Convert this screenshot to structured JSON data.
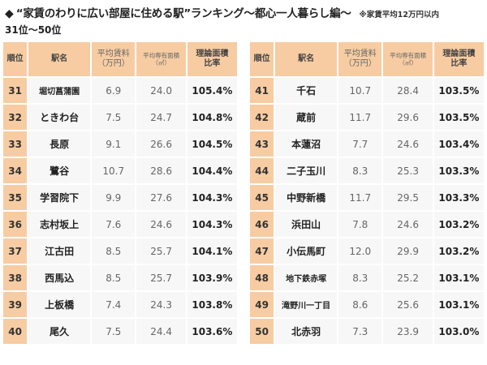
{
  "header": {
    "diamond": "◆",
    "title": "“家賃のわりに広い部屋に住める駅”ランキング〜都心一人暮らし編〜",
    "note": "※家賃平均12万円以内",
    "subtitle": "31位〜50位"
  },
  "columns": {
    "rank": "順位",
    "name": "駅名",
    "rent": "平均賃料（万円）",
    "rent_line1": "平均賃料",
    "rent_line2": "（万円）",
    "area_line1": "平均専有面積",
    "area_line2": "（㎡）",
    "ratio_line1": "理論面積",
    "ratio_line2": "比率"
  },
  "left_rows": [
    {
      "rank": "31",
      "name": "堀切菖蒲園",
      "rent": "6.9",
      "area": "24.0",
      "ratio": "105.4%"
    },
    {
      "rank": "32",
      "name": "ときわ台",
      "rent": "7.5",
      "area": "24.7",
      "ratio": "104.8%"
    },
    {
      "rank": "33",
      "name": "長原",
      "rent": "9.1",
      "area": "26.6",
      "ratio": "104.5%"
    },
    {
      "rank": "34",
      "name": "鷺谷",
      "rent": "10.7",
      "area": "28.6",
      "ratio": "104.4%"
    },
    {
      "rank": "35",
      "name": "学習院下",
      "rent": "9.9",
      "area": "27.6",
      "ratio": "104.3%"
    },
    {
      "rank": "36",
      "name": "志村坂上",
      "rent": "7.6",
      "area": "24.6",
      "ratio": "104.3%"
    },
    {
      "rank": "37",
      "name": "江古田",
      "rent": "8.5",
      "area": "25.7",
      "ratio": "104.1%"
    },
    {
      "rank": "38",
      "name": "西馬込",
      "rent": "8.5",
      "area": "25.7",
      "ratio": "103.9%"
    },
    {
      "rank": "39",
      "name": "上板橋",
      "rent": "7.4",
      "area": "24.3",
      "ratio": "103.8%"
    },
    {
      "rank": "40",
      "name": "尾久",
      "rent": "7.5",
      "area": "24.4",
      "ratio": "103.6%"
    }
  ],
  "right_rows": [
    {
      "rank": "41",
      "name": "千石",
      "rent": "10.7",
      "area": "28.4",
      "ratio": "103.5%"
    },
    {
      "rank": "42",
      "name": "蔵前",
      "rent": "11.7",
      "area": "29.6",
      "ratio": "103.5%"
    },
    {
      "rank": "43",
      "name": "本蓮沼",
      "rent": "7.7",
      "area": "24.6",
      "ratio": "103.4%"
    },
    {
      "rank": "44",
      "name": "二子玉川",
      "rent": "8.3",
      "area": "25.3",
      "ratio": "103.3%"
    },
    {
      "rank": "45",
      "name": "中野新橋",
      "rent": "11.7",
      "area": "29.5",
      "ratio": "103.3%"
    },
    {
      "rank": "46",
      "name": "浜田山",
      "rent": "7.8",
      "area": "24.6",
      "ratio": "103.2%"
    },
    {
      "rank": "47",
      "name": "小伝馬町",
      "rent": "12.0",
      "area": "29.9",
      "ratio": "103.2%"
    },
    {
      "rank": "48",
      "name": "地下鉄赤塚",
      "rent": "8.3",
      "area": "25.2",
      "ratio": "103.1%"
    },
    {
      "rank": "49",
      "name": "滝野川一丁目",
      "rent": "8.6",
      "area": "25.6",
      "ratio": "103.1%"
    },
    {
      "rank": "50",
      "name": "北赤羽",
      "rent": "7.3",
      "area": "23.9",
      "ratio": "103.0%"
    }
  ],
  "colors": {
    "header_bg": "#f7cca2",
    "cell_bg": "#f7f7f7",
    "rank_bg": "#f7cca2"
  }
}
